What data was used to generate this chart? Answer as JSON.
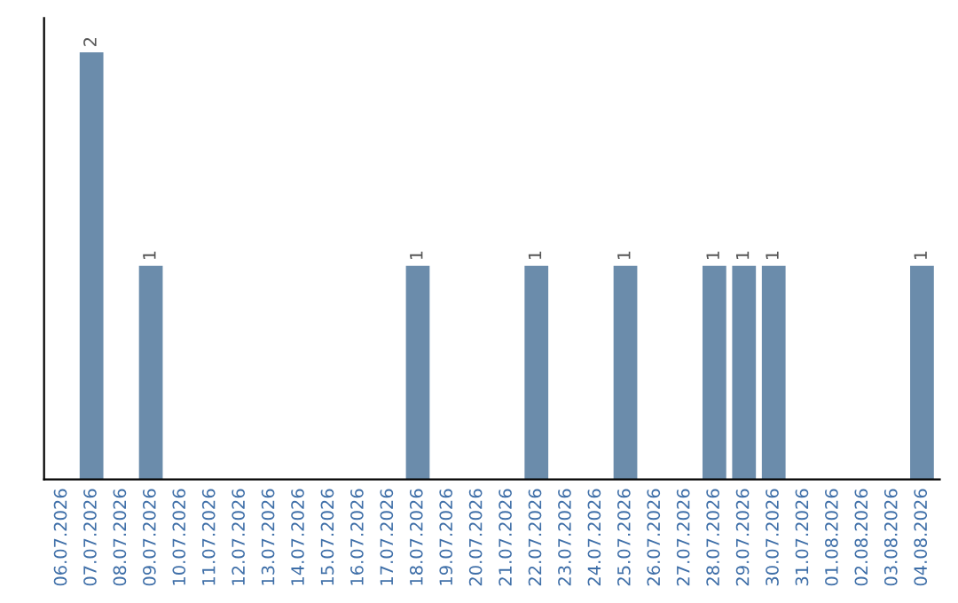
{
  "chart_data": {
    "type": "bar",
    "categories": [
      "06.07.2026",
      "07.07.2026",
      "08.07.2026",
      "09.07.2026",
      "10.07.2026",
      "11.07.2026",
      "12.07.2026",
      "13.07.2026",
      "14.07.2026",
      "15.07.2026",
      "16.07.2026",
      "17.07.2026",
      "18.07.2026",
      "19.07.2026",
      "20.07.2026",
      "21.07.2026",
      "22.07.2026",
      "23.07.2026",
      "24.07.2026",
      "25.07.2026",
      "26.07.2026",
      "27.07.2026",
      "28.07.2026",
      "29.07.2026",
      "30.07.2026",
      "31.07.2026",
      "01.08.2026",
      "02.08.2026",
      "03.08.2026",
      "04.08.2026"
    ],
    "values": [
      0,
      2,
      0,
      1,
      0,
      0,
      0,
      0,
      0,
      0,
      0,
      0,
      1,
      0,
      0,
      0,
      1,
      0,
      0,
      1,
      0,
      0,
      1,
      1,
      1,
      0,
      0,
      0,
      0,
      1
    ],
    "value_labels": [
      null,
      "2",
      null,
      "1",
      null,
      null,
      null,
      null,
      null,
      null,
      null,
      null,
      "1",
      null,
      null,
      null,
      "1",
      null,
      null,
      "1",
      null,
      null,
      "1",
      "1",
      "1",
      null,
      null,
      null,
      null,
      "1"
    ],
    "color": "#6b8cab",
    "grid": false,
    "legend": false
  }
}
